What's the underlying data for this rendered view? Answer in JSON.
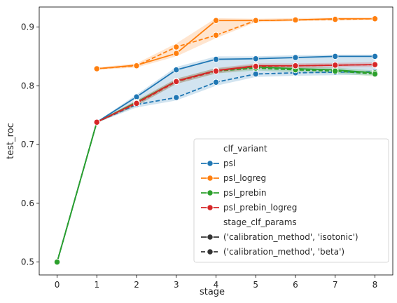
{
  "chart_data": {
    "type": "line",
    "xlabel": "stage",
    "ylabel": "test_roc",
    "x": [
      0,
      1,
      2,
      3,
      4,
      5,
      6,
      7,
      8
    ],
    "xlim": [
      -0.45,
      8.45
    ],
    "ylim": [
      0.478,
      0.934
    ],
    "xticks": [
      0,
      1,
      2,
      3,
      4,
      5,
      6,
      7,
      8
    ],
    "yticks": [
      0.5,
      0.6,
      0.7,
      0.8,
      0.9
    ],
    "ytick_labels": [
      "0.5",
      "0.6",
      "0.7",
      "0.8",
      "0.9"
    ],
    "legend": {
      "position": "lower-right",
      "hue_title": "clf_variant",
      "style_title": "stage_clf_params",
      "style_labels": [
        "('calibration_method', 'isotonic')",
        "('calibration_method', 'beta')"
      ]
    },
    "series": [
      {
        "name": "psl",
        "color": "#1f77b4",
        "isotonic": [
          0.5,
          0.738,
          0.781,
          0.827,
          0.845,
          0.846,
          0.848,
          0.85,
          0.85
        ],
        "beta": [
          0.5,
          0.738,
          0.768,
          0.78,
          0.806,
          0.82,
          0.822,
          0.823,
          0.824
        ],
        "band": [
          [
            0.5,
            0.5
          ],
          [
            0.737,
            0.739
          ],
          [
            0.763,
            0.785
          ],
          [
            0.775,
            0.832
          ],
          [
            0.8,
            0.85
          ],
          [
            0.815,
            0.85
          ],
          [
            0.817,
            0.852
          ],
          [
            0.818,
            0.853
          ],
          [
            0.819,
            0.853
          ]
        ]
      },
      {
        "name": "psl_logreg",
        "color": "#ff7f0e",
        "isotonic": [
          null,
          0.829,
          0.835,
          0.855,
          0.911,
          0.911,
          0.912,
          0.914,
          0.914
        ],
        "beta": [
          null,
          0.829,
          0.834,
          0.866,
          0.886,
          0.911,
          0.912,
          0.913,
          0.914
        ],
        "band": [
          null,
          [
            0.827,
            0.831
          ],
          [
            0.831,
            0.838
          ],
          [
            0.85,
            0.872
          ],
          [
            0.881,
            0.915
          ],
          [
            0.908,
            0.914
          ],
          [
            0.91,
            0.915
          ],
          [
            0.911,
            0.916
          ],
          [
            0.912,
            0.916
          ]
        ]
      },
      {
        "name": "psl_prebin",
        "color": "#2ca02c",
        "isotonic": [
          0.5,
          0.738,
          0.772,
          0.808,
          0.826,
          0.832,
          0.829,
          0.827,
          0.822
        ],
        "beta": [
          0.5,
          0.738,
          0.77,
          0.807,
          0.825,
          0.83,
          0.827,
          0.825,
          0.82
        ],
        "band": [
          [
            0.5,
            0.5
          ],
          [
            0.737,
            0.739
          ],
          [
            0.766,
            0.775
          ],
          [
            0.803,
            0.812
          ],
          [
            0.821,
            0.83
          ],
          [
            0.826,
            0.836
          ],
          [
            0.823,
            0.833
          ],
          [
            0.821,
            0.831
          ],
          [
            0.816,
            0.826
          ]
        ]
      },
      {
        "name": "psl_prebin_logreg",
        "color": "#d62728",
        "isotonic": [
          null,
          0.738,
          0.771,
          0.808,
          0.826,
          0.834,
          0.834,
          0.835,
          0.836
        ],
        "beta": [
          null,
          0.738,
          0.77,
          0.807,
          0.825,
          0.833,
          0.834,
          0.835,
          0.836
        ],
        "band": [
          null,
          [
            0.737,
            0.739
          ],
          [
            0.766,
            0.775
          ],
          [
            0.803,
            0.812
          ],
          [
            0.821,
            0.83
          ],
          [
            0.829,
            0.838
          ],
          [
            0.83,
            0.838
          ],
          [
            0.831,
            0.839
          ],
          [
            0.832,
            0.84
          ]
        ]
      }
    ]
  }
}
